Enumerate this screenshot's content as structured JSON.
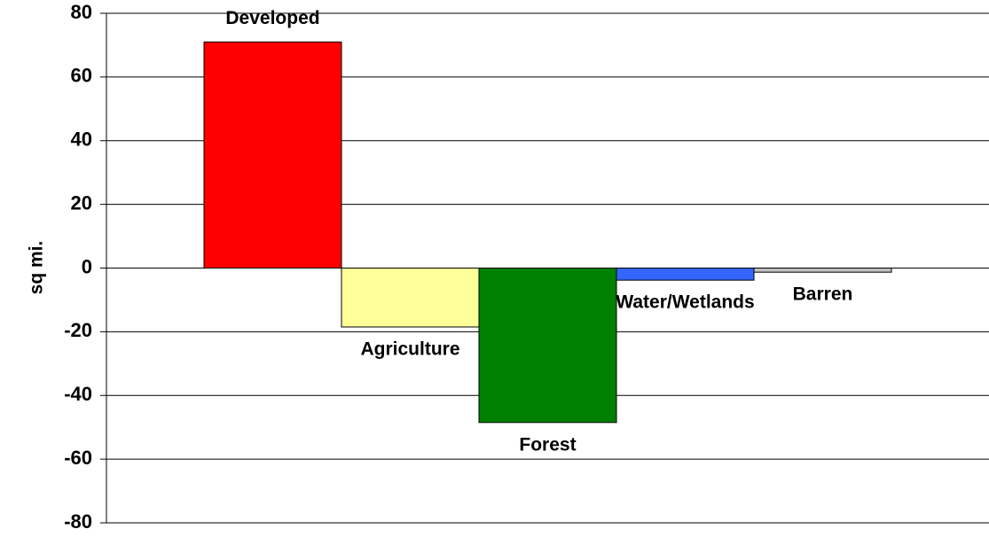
{
  "chart_data": {
    "type": "bar",
    "y_label": "sq mi.",
    "categories": [
      "Developed",
      "Agriculture",
      "Forest",
      "Water/Wetlands",
      "Barren"
    ],
    "values": [
      71,
      -18.5,
      -48.5,
      -3.8,
      -1.3
    ],
    "colors": [
      "#ff0000",
      "#ffff99",
      "#008000",
      "#3366ff",
      "#c0c0c0"
    ],
    "ylim": [
      -80,
      80
    ],
    "yticks": [
      -80,
      -60,
      -40,
      -20,
      0,
      20,
      40,
      60,
      80
    ],
    "grid": true
  }
}
